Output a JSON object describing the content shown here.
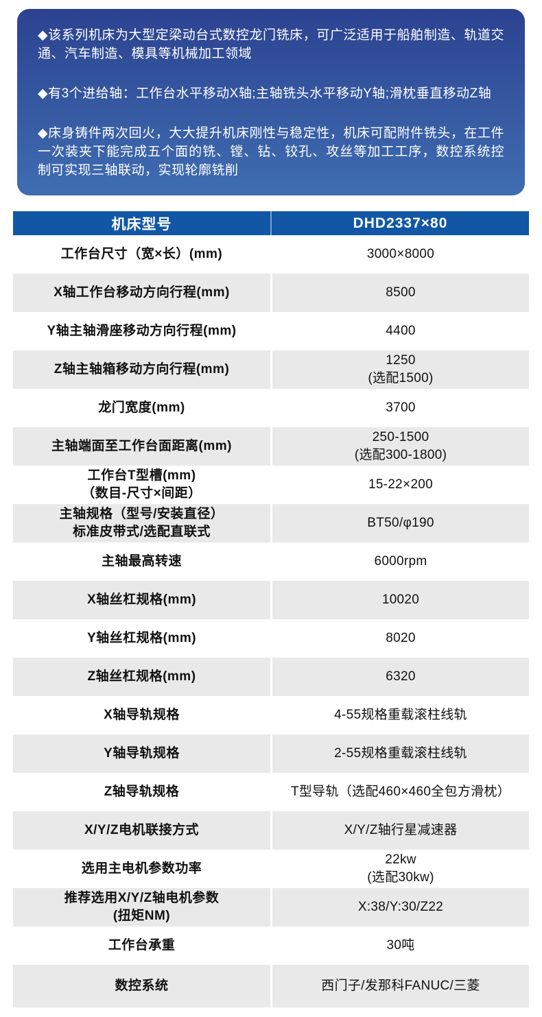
{
  "intro": {
    "bg_top": "#2c4290",
    "bg_bottom": "#3f6db1",
    "paragraphs": [
      "◆该系列机床为大型定梁动台式数控龙门铣床，可广泛适用于船舶制造、轨道交通、汽车制造、模具等机械加工领域",
      "◆有3个进给轴：工作台水平移动X轴;主轴铣头水平移动Y轴;滑枕垂直移动Z轴",
      "◆床身铸件两次回火，大大提升机床刚性与稳定性，机床可配附件铣头，在工件一次装夹下能完成五个面的铣、镗、钻、铰孔、攻丝等加工工序，数控系统控制可实现三轴联动，实现轮廓铣削"
    ]
  },
  "table": {
    "header": {
      "model_label": "机床型号",
      "model_value": "DHD2337×80",
      "bg": "#1157a5"
    },
    "row_alt_bg": "#e9e9e9",
    "rows": [
      {
        "label": [
          "工作台尺寸（宽×长）(mm)"
        ],
        "value": [
          "3000×8000"
        ]
      },
      {
        "label": [
          "X轴工作台移动方向行程(mm)"
        ],
        "value": [
          "8500"
        ]
      },
      {
        "label": [
          "Y轴主轴滑座移动方向行程(mm)"
        ],
        "value": [
          "4400"
        ]
      },
      {
        "label": [
          "Z轴主轴箱移动方向行程(mm)"
        ],
        "value": [
          "1250",
          "(选配1500)"
        ]
      },
      {
        "label": [
          "龙门宽度(mm)"
        ],
        "value": [
          "3700"
        ]
      },
      {
        "label": [
          "主轴端面至工作台面距离(mm)"
        ],
        "value": [
          "250-1500",
          "(选配300-1800)"
        ]
      },
      {
        "label": [
          "工作台T型槽(mm)",
          "（数目-尺寸×间距）"
        ],
        "value": [
          "15-22×200"
        ]
      },
      {
        "label": [
          "主轴规格（型号/安装直径）",
          "标准皮带式/选配直联式"
        ],
        "value": [
          "BT50/φ190"
        ]
      },
      {
        "label": [
          "主轴最高转速"
        ],
        "value": [
          "6000rpm"
        ]
      },
      {
        "label": [
          "X轴丝杠规格(mm)"
        ],
        "value": [
          "10020"
        ]
      },
      {
        "label": [
          "Y轴丝杠规格(mm)"
        ],
        "value": [
          "8020"
        ]
      },
      {
        "label": [
          "Z轴丝杠规格(mm)"
        ],
        "value": [
          "6320"
        ]
      },
      {
        "label": [
          "X轴导轨规格"
        ],
        "value": [
          "4-55规格重载滚柱线轨"
        ]
      },
      {
        "label": [
          "Y轴导轨规格"
        ],
        "value": [
          "2-55规格重载滚柱线轨"
        ]
      },
      {
        "label": [
          "Z轴导轨规格"
        ],
        "value": [
          "T型导轨（选配460×460全包方滑枕）"
        ]
      },
      {
        "label": [
          "X/Y/Z电机联接方式"
        ],
        "value": [
          "X/Y/Z轴行星减速器"
        ]
      },
      {
        "label": [
          "选用主电机参数功率"
        ],
        "value": [
          "22kw",
          "(选配30kw)"
        ]
      },
      {
        "label": [
          "推荐选用X/Y/Z轴电机参数",
          "(扭矩NM)"
        ],
        "value": [
          "X:38/Y:30/Z22"
        ]
      },
      {
        "label": [
          "工作台承重"
        ],
        "value": [
          "30吨"
        ]
      },
      {
        "label": [
          "数控系统"
        ],
        "value": [
          "西门子/发那科FANUC/三菱"
        ]
      }
    ]
  }
}
